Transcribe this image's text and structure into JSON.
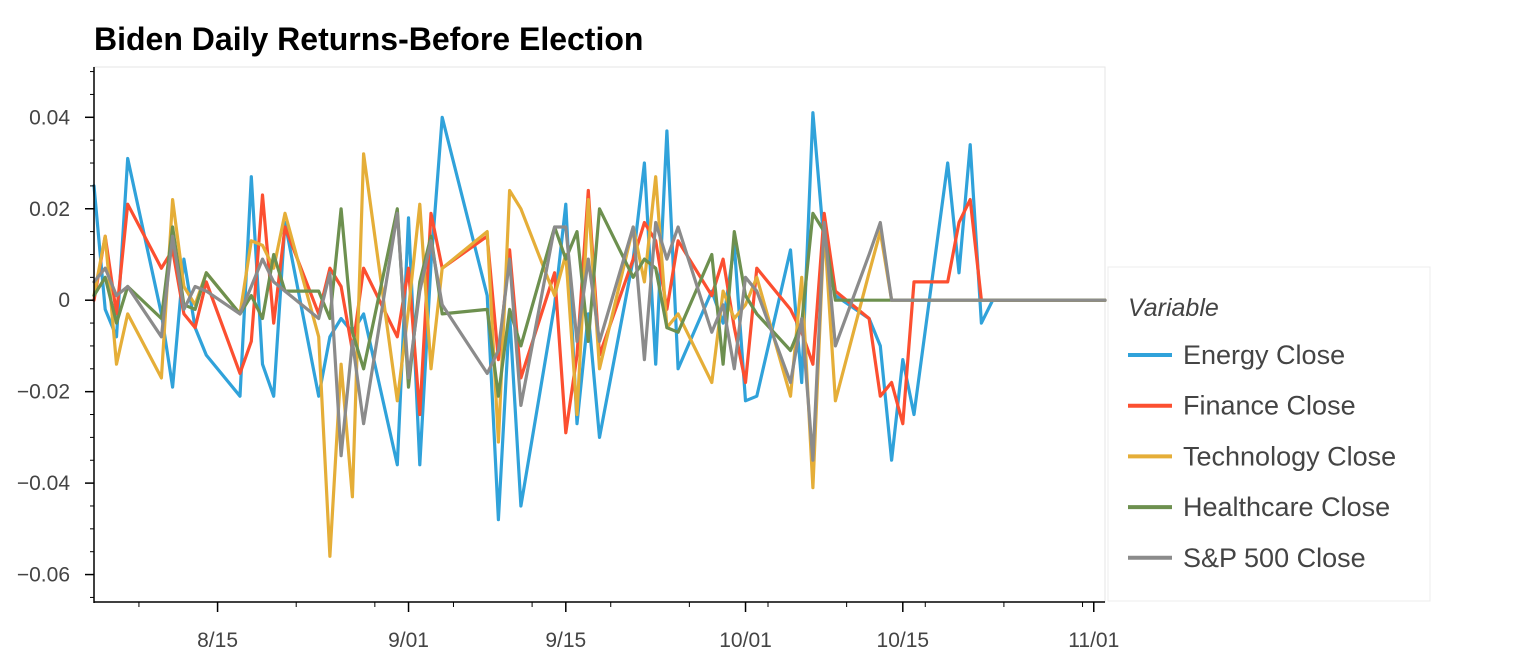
{
  "chart_data": {
    "type": "line",
    "title": "Biden Daily Returns-Before Election",
    "xlabel": "",
    "ylabel": "",
    "xlim": [
      "2020-08-04",
      "2020-11-02"
    ],
    "ylim": [
      -0.066,
      0.051
    ],
    "x_ticks": [
      "2020-08-15",
      "2020-09-01",
      "2020-09-15",
      "2020-10-01",
      "2020-10-15",
      "2020-11-01"
    ],
    "x_tick_labels": [
      "8/15",
      "9/01",
      "9/15",
      "10/01",
      "10/15",
      "11/01"
    ],
    "y_ticks": [
      0.04,
      0.02,
      0,
      -0.02,
      -0.04,
      -0.06
    ],
    "y_tick_labels": [
      "0.04",
      "0.02",
      "0",
      "−0.02",
      "−0.04",
      "−0.06"
    ],
    "grid": false,
    "legend": {
      "title": "Variable",
      "position": "right"
    },
    "x": [
      "2020-08-04",
      "2020-08-05",
      "2020-08-06",
      "2020-08-07",
      "2020-08-10",
      "2020-08-11",
      "2020-08-12",
      "2020-08-13",
      "2020-08-14",
      "2020-08-17",
      "2020-08-18",
      "2020-08-19",
      "2020-08-20",
      "2020-08-21",
      "2020-08-24",
      "2020-08-25",
      "2020-08-26",
      "2020-08-27",
      "2020-08-28",
      "2020-08-31",
      "2020-09-01",
      "2020-09-02",
      "2020-09-03",
      "2020-09-04",
      "2020-09-08",
      "2020-09-09",
      "2020-09-10",
      "2020-09-11",
      "2020-09-14",
      "2020-09-15",
      "2020-09-16",
      "2020-09-17",
      "2020-09-18",
      "2020-09-21",
      "2020-09-22",
      "2020-09-23",
      "2020-09-24",
      "2020-09-25",
      "2020-09-28",
      "2020-09-29",
      "2020-09-30",
      "2020-10-01",
      "2020-10-02",
      "2020-10-05",
      "2020-10-06",
      "2020-10-07",
      "2020-10-08",
      "2020-10-09",
      "2020-10-12",
      "2020-10-13",
      "2020-10-14",
      "2020-10-15",
      "2020-10-16",
      "2020-10-19",
      "2020-10-20",
      "2020-10-21",
      "2020-10-22",
      "2020-10-23",
      "2020-10-26",
      "2020-10-27",
      "2020-10-28",
      "2020-10-29",
      "2020-10-30",
      "2020-11-02"
    ],
    "series": [
      {
        "name": "Energy Close",
        "color": "#30a2da",
        "values": [
          0.025,
          -0.002,
          -0.008,
          0.031,
          -0.003,
          -0.019,
          0.009,
          -0.006,
          -0.012,
          -0.021,
          0.027,
          -0.014,
          -0.021,
          0.017,
          -0.021,
          -0.008,
          -0.004,
          -0.007,
          -0.003,
          -0.036,
          0.018,
          -0.036,
          0.008,
          0.04,
          0.001,
          -0.048,
          -0.003,
          -0.045,
          -0.001,
          0.021,
          -0.027,
          -0.003,
          -0.03,
          0.009,
          0.03,
          -0.014,
          0.037,
          -0.015,
          0.002,
          -0.005,
          0.012,
          -0.022,
          -0.021,
          0.011,
          -0.018,
          0.041,
          0.012,
          0.001,
          -0.004,
          -0.01,
          -0.035,
          -0.013,
          -0.025,
          0.03,
          0.006,
          0.034,
          -0.005,
          0,
          0,
          0,
          0,
          0,
          0,
          0
        ]
      },
      {
        "name": "Finance Close",
        "color": "#fc4f30",
        "values": [
          0,
          0.014,
          -0.003,
          0.021,
          0.007,
          0.011,
          -0.003,
          -0.006,
          0.004,
          -0.016,
          -0.009,
          0.023,
          -0.005,
          0.016,
          -0.003,
          0.007,
          0.003,
          -0.011,
          0.007,
          -0.008,
          0.007,
          -0.025,
          0.019,
          0.007,
          0.014,
          -0.013,
          0.011,
          -0.017,
          0.006,
          -0.029,
          -0.012,
          0.024,
          -0.012,
          0.009,
          0.017,
          0.013,
          -0.002,
          0.013,
          0.001,
          0.009,
          -0.006,
          -0.018,
          0.007,
          -0.002,
          -0.007,
          -0.014,
          0.019,
          0.002,
          -0.004,
          -0.021,
          -0.018,
          -0.027,
          0.004,
          0.004,
          0.017,
          0.022,
          0,
          0,
          0,
          0,
          0,
          0,
          0,
          0
        ]
      },
      {
        "name": "Technology Close",
        "color": "#e5ae38",
        "values": [
          0.001,
          0.014,
          -0.014,
          -0.003,
          -0.017,
          0.022,
          0.003,
          -0.001,
          0.006,
          -0.003,
          0.013,
          0.012,
          0.007,
          0.019,
          -0.008,
          -0.056,
          -0.014,
          -0.043,
          0.032,
          -0.022,
          -0.002,
          0.021,
          -0.015,
          0.007,
          0.015,
          -0.031,
          0.024,
          0.02,
          0.001,
          0.01,
          -0.025,
          0.022,
          -0.015,
          0.016,
          0.004,
          0.027,
          -0.006,
          -0.003,
          -0.018,
          0.002,
          -0.004,
          -0.001,
          0.005,
          -0.021,
          0.005,
          -0.041,
          0.016,
          -0.022,
          0.006,
          0.015,
          0,
          0,
          0,
          0,
          0,
          0,
          0,
          0,
          0,
          0,
          0,
          0,
          0,
          0
        ]
      },
      {
        "name": "Healthcare Close",
        "color": "#6d904f",
        "values": [
          0.001,
          0.005,
          -0.005,
          0.003,
          -0.004,
          0.016,
          -0.001,
          -0.002,
          0.006,
          -0.003,
          0.001,
          -0.004,
          0.01,
          0.002,
          0.002,
          -0.004,
          0.02,
          -0.007,
          -0.015,
          0.02,
          -0.019,
          0.004,
          0.014,
          -0.003,
          -0.002,
          -0.021,
          -0.002,
          -0.01,
          0.016,
          0.009,
          0.015,
          -0.009,
          0.02,
          0.005,
          0.009,
          0.007,
          -0.006,
          -0.007,
          0.01,
          -0.014,
          0.015,
          0.001,
          -0.003,
          -0.011,
          -0.005,
          0.019,
          0.015,
          0,
          0,
          0,
          0,
          0,
          0,
          0,
          0,
          0,
          0,
          0,
          0,
          0,
          0,
          0,
          0,
          0
        ]
      },
      {
        "name": "S&P 500 Close",
        "color": "#8b8b8b",
        "values": [
          0.004,
          0.007,
          0.001,
          0.003,
          -0.008,
          0.014,
          -0.002,
          0.003,
          0.002,
          -0.003,
          0.003,
          0.009,
          0.004,
          0.002,
          -0.004,
          0.006,
          -0.034,
          -0.009,
          -0.027,
          0.019,
          -0.017,
          0.002,
          0.013,
          -0.001,
          -0.016,
          -0.011,
          0.009,
          -0.023,
          0.016,
          0.016,
          -0.009,
          0.009,
          -0.009,
          0.016,
          -0.013,
          0.017,
          0.009,
          0.016,
          -0.007,
          -0.001,
          -0.015,
          0.005,
          0.002,
          -0.018,
          -0.004,
          -0.035,
          0.017,
          -0.01,
          0.01,
          0.017,
          0,
          0,
          0,
          0,
          0,
          0,
          0,
          0,
          0,
          0,
          0,
          0,
          0,
          0
        ]
      }
    ]
  }
}
